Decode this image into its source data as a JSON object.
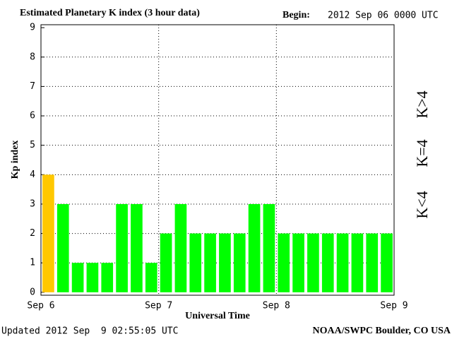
{
  "chart_data": {
    "type": "bar",
    "title": "Estimated Planetary K index (3 hour data)",
    "begin_label": "Begin:",
    "begin_value": "2012 Sep 06 0000 UTC",
    "updated": "Updated 2012 Sep  9 02:55:05 UTC",
    "source": "NOAA/SWPC Boulder, CO USA",
    "y_label": "Kp index",
    "x_label": "Universal Time",
    "categories": [
      null,
      null,
      null,
      null,
      null,
      null,
      null,
      null,
      null,
      null,
      null,
      null,
      null,
      null,
      null,
      null,
      null,
      null,
      null,
      null,
      null,
      null,
      null,
      null
    ],
    "values": [
      4,
      3,
      1,
      1,
      1,
      3,
      3,
      1,
      2,
      3,
      2,
      2,
      2,
      2,
      3,
      3,
      2,
      2,
      2,
      2,
      2,
      2,
      2,
      2
    ],
    "bar_colors": [
      "#ffc800",
      "#00ff00",
      "#00ff00",
      "#00ff00",
      "#00ff00",
      "#00ff00",
      "#00ff00",
      "#00ff00",
      "#00ff00",
      "#00ff00",
      "#00ff00",
      "#00ff00",
      "#00ff00",
      "#00ff00",
      "#00ff00",
      "#00ff00",
      "#00ff00",
      "#00ff00",
      "#00ff00",
      "#00ff00",
      "#00ff00",
      "#00ff00",
      "#00ff00",
      "#00ff00"
    ],
    "xlim": [
      0,
      24
    ],
    "xticks": [
      {
        "value": 0,
        "label": "Sep 6"
      },
      {
        "value": 8,
        "label": "Sep 7"
      },
      {
        "value": 16,
        "label": "Sep 8"
      },
      {
        "value": 24,
        "label": "Sep 9"
      }
    ],
    "ylim": [
      -0.1,
      9.1
    ],
    "yticks": [
      0,
      1,
      2,
      3,
      4,
      5,
      6,
      7,
      8,
      9
    ],
    "grid": true,
    "legend": [
      {
        "label": "K<4",
        "color": "#00ff00"
      },
      {
        "label": "K=4",
        "color": "#ffc800"
      },
      {
        "label": "K>4",
        "color": "#ff2000"
      }
    ]
  }
}
